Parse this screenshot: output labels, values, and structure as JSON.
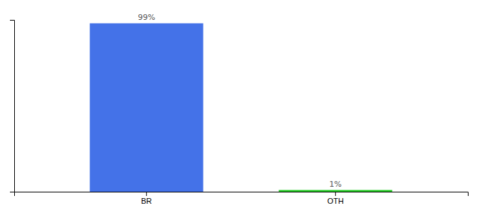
{
  "chart_data": {
    "type": "bar",
    "categories": [
      "BR",
      "OTH"
    ],
    "values": [
      99,
      1
    ],
    "value_labels": [
      "99%",
      "1%"
    ],
    "colors": [
      "#4472e8",
      "#22cc22"
    ],
    "ylim": [
      0,
      101
    ],
    "data_labels": true,
    "tick_labels": "x",
    "grid": false
  }
}
